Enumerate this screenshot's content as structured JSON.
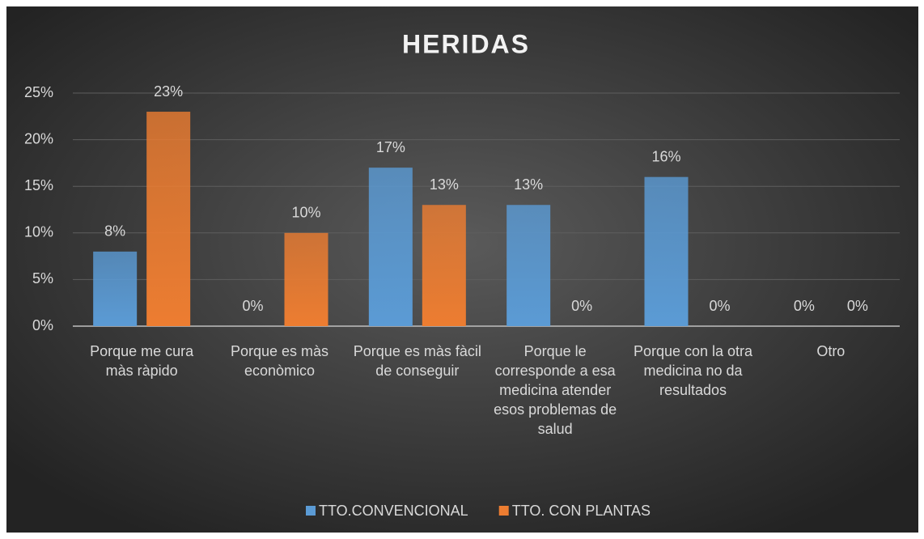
{
  "chart_data": {
    "type": "bar",
    "title": "HERIDAS",
    "categories": [
      "Porque me cura màs ràpido",
      "Porque es màs econòmico",
      "Porque es màs fàcil de conseguir",
      "Porque le corresponde a esa medicina atender esos problemas de salud",
      "Porque con la otra medicina no da resultados",
      "Otro"
    ],
    "series": [
      {
        "name": "TTO.CONVENCIONAL",
        "color": "#5b9bd5",
        "values": [
          8,
          0,
          17,
          13,
          16,
          0
        ],
        "value_labels": [
          "8%",
          "0%",
          "17%",
          "13%",
          "16%",
          "0%"
        ]
      },
      {
        "name": "TTO. CON PLANTAS",
        "color": "#ed7d31",
        "values": [
          23,
          10,
          13,
          0,
          0,
          0
        ],
        "value_labels": [
          "23%",
          "10%",
          "13%",
          "0%",
          "0%",
          "0%"
        ]
      }
    ],
    "ylim": [
      0,
      25
    ],
    "yticks": [
      {
        "value": 0,
        "label": "0%"
      },
      {
        "value": 5,
        "label": "5%"
      },
      {
        "value": 10,
        "label": "10%"
      },
      {
        "value": 15,
        "label": "15%"
      },
      {
        "value": 20,
        "label": "20%"
      },
      {
        "value": 25,
        "label": "25%"
      }
    ],
    "grid": true,
    "legend": "bottom"
  }
}
